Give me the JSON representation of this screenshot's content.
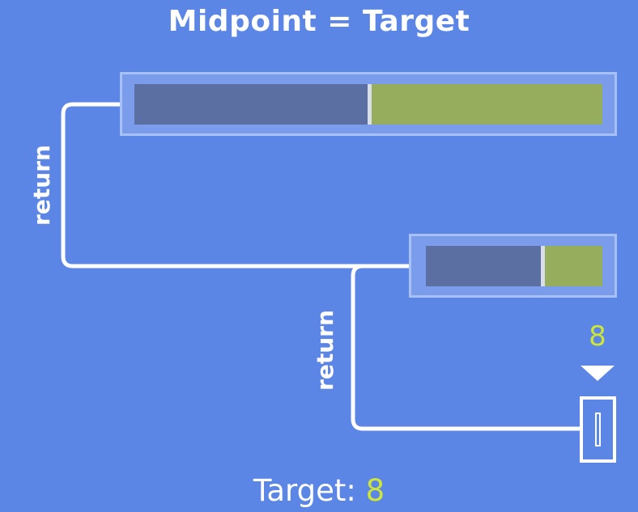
{
  "title": "Midpoint = Target",
  "labels": {
    "return_upper": "return",
    "return_lower": "return"
  },
  "marker": {
    "value": "8"
  },
  "footer": {
    "prefix": "Target:",
    "value": "8"
  },
  "colors": {
    "background": "#5b86e5",
    "discarded_half": "#5b6fa3",
    "kept_half": "#97ad5e",
    "accent": "#cde43a",
    "frame": "#a8c1f5"
  },
  "arrays": [
    {
      "role": "full-array",
      "left_fraction": 0.5
    },
    {
      "role": "sub-array",
      "left_fraction": 0.65
    }
  ]
}
